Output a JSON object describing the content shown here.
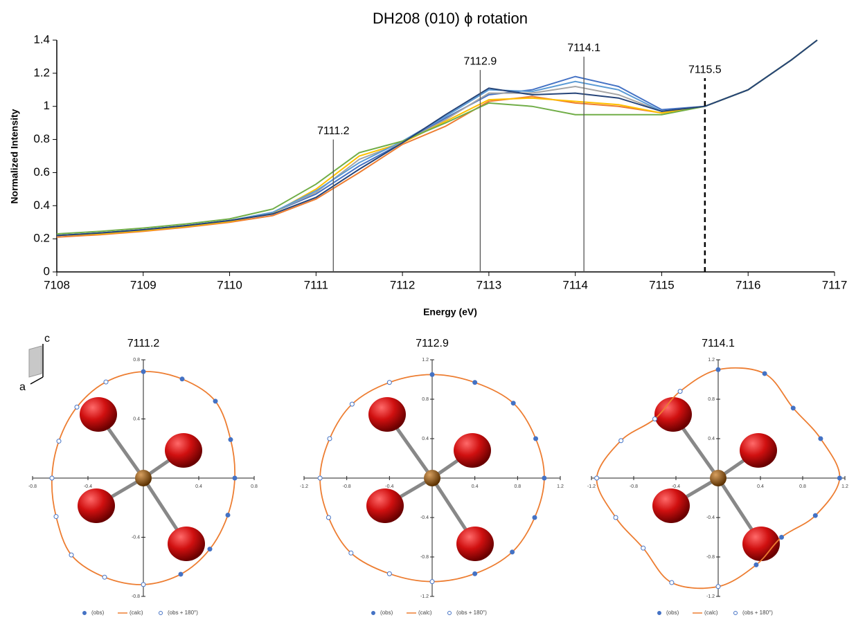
{
  "chart_data": [
    {
      "type": "line",
      "title": "DH208 (010) ϕ rotation",
      "x_label": "Energy (eV)",
      "y_label": "Normalized Intensity",
      "x": [
        7108,
        7108.5,
        7109,
        7109.5,
        7110,
        7110.5,
        7111,
        7111.5,
        7112,
        7112.5,
        7113,
        7113.5,
        7114,
        7114.5,
        7115,
        7115.5,
        7116,
        7116.5,
        7116.8
      ],
      "xlim": [
        7108,
        7117
      ],
      "xticks": [
        7108,
        7109,
        7110,
        7111,
        7112,
        7113,
        7114,
        7115,
        7116,
        7117
      ],
      "ylim": [
        0,
        1.4
      ],
      "yticks": [
        0,
        0.2,
        0.4,
        0.6,
        0.8,
        1,
        1.2,
        1.4
      ],
      "series": [
        {
          "color": "#4472c4",
          "values": [
            0.22,
            0.235,
            0.255,
            0.28,
            0.31,
            0.36,
            0.47,
            0.64,
            0.78,
            0.93,
            1.07,
            1.1,
            1.18,
            1.12,
            0.98,
            1.0,
            1.1,
            1.28,
            1.4
          ]
        },
        {
          "color": "#ed7d31",
          "values": [
            0.21,
            0.225,
            0.245,
            0.27,
            0.3,
            0.34,
            0.44,
            0.6,
            0.77,
            0.88,
            1.03,
            1.06,
            1.02,
            1.0,
            0.96,
            1.0,
            1.1,
            1.28,
            1.4
          ]
        },
        {
          "color": "#a5a5a5",
          "values": [
            0.22,
            0.235,
            0.255,
            0.28,
            0.31,
            0.36,
            0.48,
            0.68,
            0.78,
            0.92,
            1.08,
            1.08,
            1.12,
            1.07,
            0.97,
            1.0,
            1.1,
            1.28,
            1.4
          ]
        },
        {
          "color": "#ffc000",
          "values": [
            0.22,
            0.23,
            0.25,
            0.275,
            0.305,
            0.355,
            0.5,
            0.7,
            0.78,
            0.91,
            1.04,
            1.05,
            1.03,
            1.01,
            0.96,
            1.0,
            1.1,
            1.28,
            1.4
          ]
        },
        {
          "color": "#5b9bd5",
          "values": [
            0.22,
            0.235,
            0.255,
            0.28,
            0.31,
            0.36,
            0.49,
            0.66,
            0.79,
            0.94,
            1.1,
            1.09,
            1.15,
            1.1,
            0.97,
            1.0,
            1.1,
            1.28,
            1.4
          ]
        },
        {
          "color": "#70ad47",
          "values": [
            0.23,
            0.245,
            0.265,
            0.29,
            0.32,
            0.38,
            0.53,
            0.72,
            0.79,
            0.9,
            1.02,
            1.0,
            0.95,
            0.95,
            0.95,
            1.0,
            1.1,
            1.28,
            1.4
          ]
        },
        {
          "color": "#264478",
          "values": [
            0.22,
            0.235,
            0.255,
            0.28,
            0.31,
            0.35,
            0.45,
            0.62,
            0.78,
            0.95,
            1.11,
            1.07,
            1.08,
            1.05,
            0.97,
            1.0,
            1.1,
            1.28,
            1.4
          ]
        }
      ],
      "annotations": [
        {
          "x": 7111.2,
          "y": 0.8,
          "label": "7111.2",
          "dashed": false
        },
        {
          "x": 7112.9,
          "y": 1.22,
          "label": "7112.9",
          "dashed": false
        },
        {
          "x": 7114.1,
          "y": 1.3,
          "label": "7114.1",
          "dashed": false
        },
        {
          "x": 7115.5,
          "y": 1.17,
          "label": "7115.5",
          "dashed": true
        }
      ]
    },
    {
      "type": "scatter",
      "title": "7111.2",
      "crystal_axes": [
        "c",
        "a"
      ],
      "xlim": [
        -0.8,
        0.8
      ],
      "ylim": [
        -0.8,
        0.8
      ],
      "xticks": [
        -0.8,
        -0.4,
        0.4,
        0.8
      ],
      "yticks": [
        -0.8,
        -0.4,
        0.4,
        0.8
      ],
      "series": [
        {
          "name": "(obs)",
          "color": "#4472c4",
          "marker": "filled",
          "x": [
            0,
            0.28,
            0.52,
            0.63,
            0.66,
            0.61,
            0.48,
            0.27
          ],
          "y": [
            0.72,
            0.67,
            0.52,
            0.26,
            0,
            -0.25,
            -0.48,
            -0.65
          ]
        },
        {
          "name": "(calc)",
          "color": "#ed7d31",
          "marker": "line",
          "x": [
            0,
            0.28,
            0.52,
            0.63,
            0.66,
            0.61,
            0.48,
            0.27,
            0,
            -0.28,
            -0.52,
            -0.63,
            -0.66,
            -0.61,
            -0.48,
            -0.27
          ],
          "y": [
            0.72,
            0.67,
            0.52,
            0.26,
            0,
            -0.25,
            -0.48,
            -0.65,
            -0.72,
            -0.67,
            -0.52,
            -0.26,
            0,
            0.25,
            0.48,
            0.65
          ]
        },
        {
          "name": "(obs + 180°)",
          "color": "#4472c4",
          "marker": "open",
          "x": [
            0,
            -0.28,
            -0.52,
            -0.63,
            -0.66,
            -0.61,
            -0.48,
            -0.27
          ],
          "y": [
            -0.72,
            -0.67,
            -0.52,
            -0.26,
            0,
            0.25,
            0.48,
            0.65
          ]
        }
      ]
    },
    {
      "type": "scatter",
      "title": "7112.9",
      "xlim": [
        -1.2,
        1.2
      ],
      "ylim": [
        -1.2,
        1.2
      ],
      "xticks": [
        -1.2,
        -0.8,
        -0.4,
        0.4,
        0.8,
        1.2
      ],
      "yticks": [
        -1.2,
        -0.8,
        -0.4,
        0.4,
        0.8,
        1.2
      ],
      "series": [
        {
          "name": "(obs)",
          "color": "#4472c4",
          "marker": "filled",
          "x": [
            0,
            0.4,
            0.76,
            0.97,
            1.05,
            0.96,
            0.75,
            0.4
          ],
          "y": [
            1.05,
            0.97,
            0.76,
            0.4,
            0,
            -0.4,
            -0.75,
            -0.97
          ]
        },
        {
          "name": "(calc)",
          "color": "#ed7d31",
          "marker": "line",
          "x": [
            0,
            0.4,
            0.76,
            0.97,
            1.05,
            0.96,
            0.75,
            0.4,
            0,
            -0.4,
            -0.76,
            -0.97,
            -1.05,
            -0.96,
            -0.75,
            -0.4
          ],
          "y": [
            1.05,
            0.97,
            0.76,
            0.4,
            0,
            -0.4,
            -0.75,
            -0.97,
            -1.05,
            -0.97,
            -0.76,
            -0.4,
            0,
            0.4,
            0.75,
            0.97
          ]
        },
        {
          "name": "(obs + 180°)",
          "color": "#4472c4",
          "marker": "open",
          "x": [
            0,
            -0.4,
            -0.76,
            -0.97,
            -1.05,
            -0.96,
            -0.75,
            -0.4
          ],
          "y": [
            -1.05,
            -0.97,
            -0.76,
            -0.4,
            0,
            0.4,
            0.75,
            0.97
          ]
        }
      ]
    },
    {
      "type": "scatter",
      "title": "7114.1",
      "xlim": [
        -1.2,
        1.2
      ],
      "ylim": [
        -1.2,
        1.2
      ],
      "xticks": [
        -1.2,
        -0.8,
        -0.4,
        0.4,
        0.8,
        1.2
      ],
      "yticks": [
        -1.2,
        -0.8,
        -0.4,
        0.4,
        0.8,
        1.2
      ],
      "series": [
        {
          "name": "(obs)",
          "color": "#4472c4",
          "marker": "filled",
          "x": [
            0,
            0.44,
            0.71,
            0.97,
            1.15,
            0.92,
            0.6,
            0.36
          ],
          "y": [
            1.1,
            1.06,
            0.71,
            0.4,
            0,
            -0.38,
            -0.6,
            -0.88
          ]
        },
        {
          "name": "(calc)",
          "color": "#ed7d31",
          "marker": "line",
          "x": [
            0,
            0.44,
            0.71,
            0.97,
            1.15,
            0.92,
            0.6,
            0.36,
            0,
            -0.44,
            -0.71,
            -0.97,
            -1.15,
            -0.92,
            -0.6,
            -0.36
          ],
          "y": [
            1.1,
            1.06,
            0.71,
            0.4,
            0,
            -0.38,
            -0.6,
            -0.88,
            -1.1,
            -1.06,
            -0.71,
            -0.4,
            0,
            0.38,
            0.6,
            0.88
          ]
        },
        {
          "name": "(obs + 180°)",
          "color": "#4472c4",
          "marker": "open",
          "x": [
            0,
            -0.44,
            -0.71,
            -0.97,
            -1.15,
            -0.92,
            -0.6,
            -0.36
          ],
          "y": [
            -1.1,
            -1.06,
            -0.71,
            -0.4,
            0,
            0.38,
            0.6,
            0.88
          ]
        }
      ]
    }
  ]
}
